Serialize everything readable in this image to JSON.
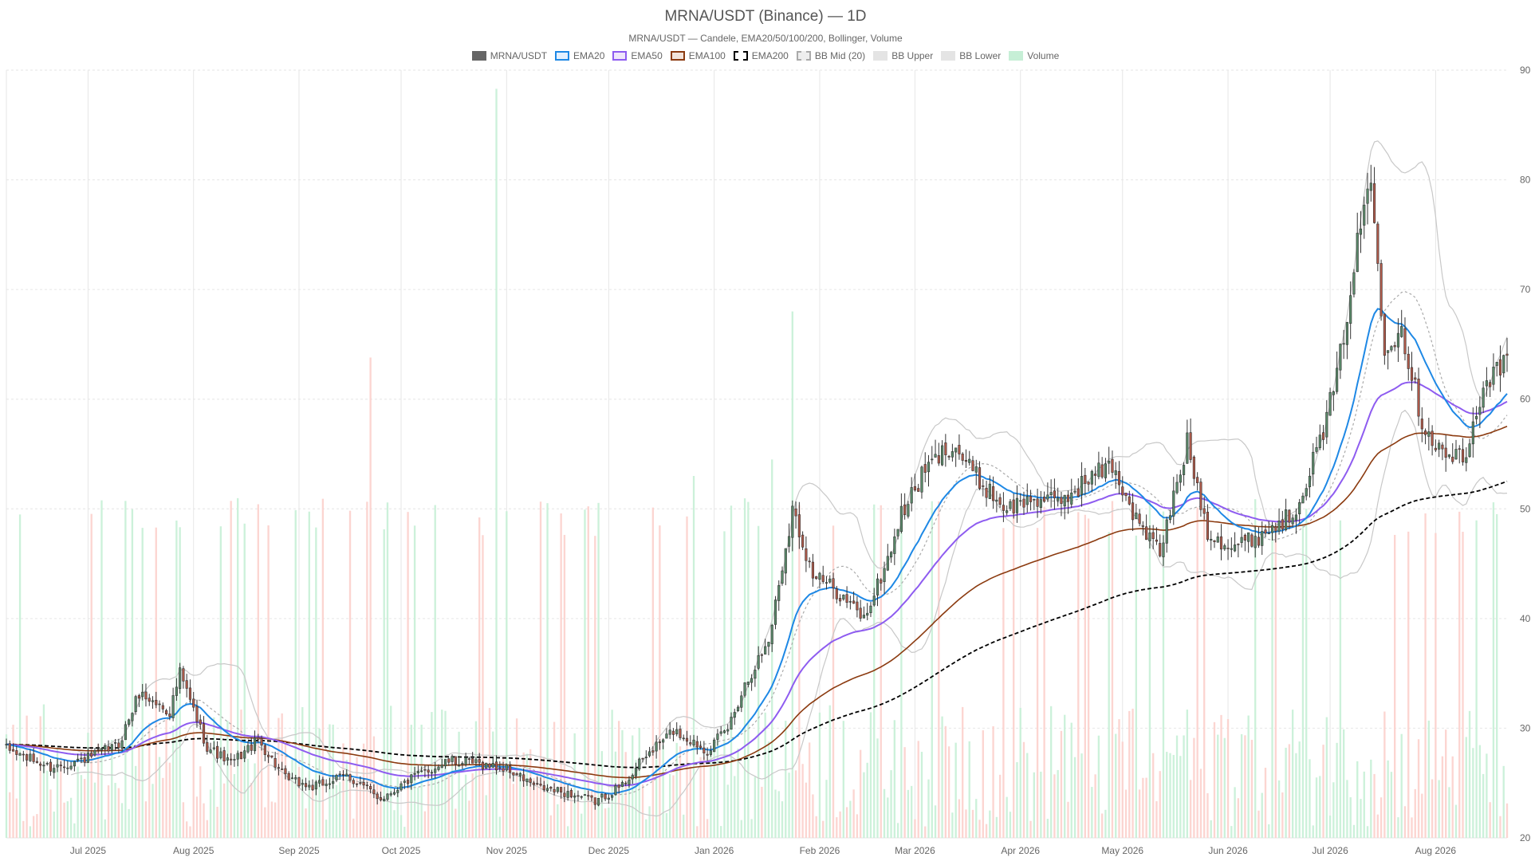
{
  "chart_data": {
    "type": "candlestick",
    "title": "MRNA/USDT (Binance) — 1D",
    "subtitle": "MRNA/USDT — Candele, EMA20/50/100/200, Bollinger, Volume",
    "legend": [
      {
        "label": "MRNA/USDT",
        "fill": "#666666",
        "border": "#666666",
        "dash": false
      },
      {
        "label": "EMA20",
        "fill": "#e3f0ff",
        "border": "#1e88e5",
        "dash": false
      },
      {
        "label": "EMA50",
        "fill": "#efe6fb",
        "border": "#8e5cf0",
        "dash": false
      },
      {
        "label": "EMA100",
        "fill": "#f2e2d9",
        "border": "#8b3a0f",
        "dash": false
      },
      {
        "label": "EMA200",
        "fill": "#ffffff",
        "border": "#000000",
        "dash": true
      },
      {
        "label": "BB Mid (20)",
        "fill": "#eeeeee",
        "border": "#aaaaaa",
        "dash": true
      },
      {
        "label": "BB Upper",
        "fill": "#e4e4e4",
        "border": "#e4e4e4",
        "dash": false
      },
      {
        "label": "BB Lower",
        "fill": "#e4e4e4",
        "border": "#e4e4e4",
        "dash": false
      },
      {
        "label": "Volume",
        "fill": "#c6efd6",
        "border": "#c6efd6",
        "dash": false
      }
    ],
    "y_axis": {
      "position": "right",
      "min": 20,
      "max": 90,
      "ticks": [
        20,
        30,
        40,
        50,
        60,
        70,
        80,
        90
      ]
    },
    "x_axis": {
      "start": "2025-06-07",
      "end": "2026-08-22",
      "ticks": [
        {
          "label": "Jul 2025",
          "date": "2025-07-01"
        },
        {
          "label": "Aug 2025",
          "date": "2025-08-01"
        },
        {
          "label": "Sep 2025",
          "date": "2025-09-01"
        },
        {
          "label": "Oct 2025",
          "date": "2025-10-01"
        },
        {
          "label": "Nov 2025",
          "date": "2025-11-01"
        },
        {
          "label": "Dec 2025",
          "date": "2025-12-01"
        },
        {
          "label": "Jan 2026",
          "date": "2026-01-01"
        },
        {
          "label": "Feb 2026",
          "date": "2026-02-01"
        },
        {
          "label": "Mar 2026",
          "date": "2026-03-01"
        },
        {
          "label": "Apr 2026",
          "date": "2026-04-01"
        },
        {
          "label": "May 2026",
          "date": "2026-05-01"
        },
        {
          "label": "Jun 2026",
          "date": "2026-06-01"
        },
        {
          "label": "Jul 2026",
          "date": "2026-07-01"
        },
        {
          "label": "Aug 2026",
          "date": "2026-08-01"
        }
      ]
    },
    "grid": true,
    "colors": {
      "up": "#5a8a6a",
      "down": "#b05a4a",
      "volume_up": "#c6efd6",
      "volume_down": "#fcd0cc",
      "ema20": "#1e88e5",
      "ema50": "#8e5cf0",
      "ema100": "#8b3a0f",
      "ema200": "#000000",
      "bb_mid": "#aaaaaa",
      "bb_band": "#c8c8c8",
      "grid": "#e6e6e6"
    },
    "close_path": [
      [
        "2025-06-07",
        28.1
      ],
      [
        "2025-06-20",
        26.4
      ],
      [
        "2025-07-01",
        27.3
      ],
      [
        "2025-07-10",
        28.5
      ],
      [
        "2025-07-16",
        33.2
      ],
      [
        "2025-07-25",
        31.5
      ],
      [
        "2025-07-28",
        35.0
      ],
      [
        "2025-08-05",
        28.3
      ],
      [
        "2025-08-12",
        26.8
      ],
      [
        "2025-08-20",
        28.9
      ],
      [
        "2025-08-28",
        25.4
      ],
      [
        "2025-09-05",
        24.6
      ],
      [
        "2025-09-15",
        25.7
      ],
      [
        "2025-09-25",
        23.6
      ],
      [
        "2025-10-05",
        25.6
      ],
      [
        "2025-10-15",
        27.0
      ],
      [
        "2025-10-25",
        26.7
      ],
      [
        "2025-11-01",
        26.3
      ],
      [
        "2025-11-10",
        24.6
      ],
      [
        "2025-11-20",
        24.0
      ],
      [
        "2025-11-27",
        23.3
      ],
      [
        "2025-12-05",
        24.8
      ],
      [
        "2025-12-12",
        27.5
      ],
      [
        "2025-12-20",
        29.8
      ],
      [
        "2025-12-30",
        28.0
      ],
      [
        "2026-01-05",
        30.0
      ],
      [
        "2026-01-10",
        34.0
      ],
      [
        "2026-01-17",
        38.0
      ],
      [
        "2026-01-24",
        50.0
      ],
      [
        "2026-01-30",
        44.0
      ],
      [
        "2026-02-06",
        42.5
      ],
      [
        "2026-02-14",
        40.0
      ],
      [
        "2026-02-20",
        44.5
      ],
      [
        "2026-02-25",
        49.5
      ],
      [
        "2026-03-04",
        53.5
      ],
      [
        "2026-03-12",
        56.0
      ],
      [
        "2026-03-20",
        52.5
      ],
      [
        "2026-03-28",
        50.0
      ],
      [
        "2026-04-05",
        51.0
      ],
      [
        "2026-04-12",
        50.5
      ],
      [
        "2026-04-22",
        53.0
      ],
      [
        "2026-04-28",
        54.0
      ],
      [
        "2026-05-05",
        49.0
      ],
      [
        "2026-05-12",
        46.0
      ],
      [
        "2026-05-20",
        56.0
      ],
      [
        "2026-05-26",
        48.0
      ],
      [
        "2026-06-02",
        46.5
      ],
      [
        "2026-06-10",
        47.5
      ],
      [
        "2026-06-20",
        49.5
      ],
      [
        "2026-06-28",
        56.0
      ],
      [
        "2026-07-03",
        62.0
      ],
      [
        "2026-07-10",
        76.0
      ],
      [
        "2026-07-13",
        80.0
      ],
      [
        "2026-07-17",
        65.0
      ],
      [
        "2026-07-22",
        66.5
      ],
      [
        "2026-07-28",
        58.0
      ],
      [
        "2026-08-03",
        55.0
      ],
      [
        "2026-08-10",
        54.5
      ],
      [
        "2026-08-15",
        61.5
      ],
      [
        "2026-08-22",
        63.5
      ]
    ],
    "volume_spikes": [
      {
        "date": "2025-09-22",
        "value": 63.8,
        "dir": "down"
      },
      {
        "date": "2025-10-29",
        "value": 88.3,
        "dir": "up"
      },
      {
        "date": "2026-01-24",
        "value": 68.0,
        "dir": "up"
      },
      {
        "date": "2025-12-26",
        "value": 53.0,
        "dir": "up"
      },
      {
        "date": "2026-01-18",
        "value": 54.5,
        "dir": "up"
      }
    ]
  }
}
